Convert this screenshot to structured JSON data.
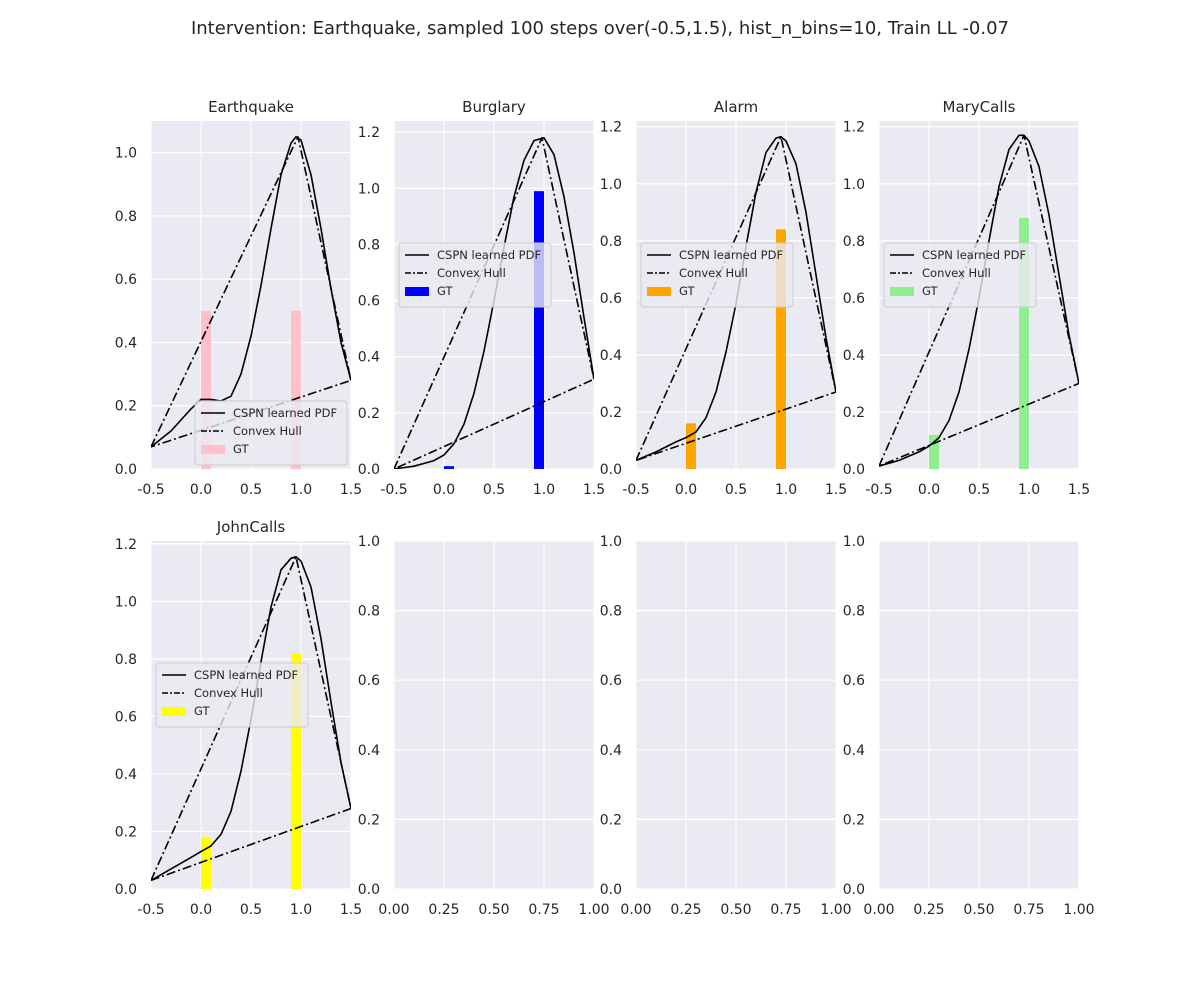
{
  "figure": {
    "suptitle": "Intervention: Earthquake, sampled 100 steps over(-0.5,1.5), hist_n_bins=10, Train LL -0.07"
  },
  "colors": {
    "axes_bg": "#eaeaf2",
    "grid": "#ffffff",
    "pdf_line": "#000000",
    "hull_line": "#000000"
  },
  "chart_data": [
    {
      "type": "line",
      "title": "Earthquake",
      "xlim": [
        -0.5,
        1.5
      ],
      "ylim": [
        0,
        1.1
      ],
      "xticks": [
        "-0.5",
        "0.0",
        "0.5",
        "1.0",
        "1.5"
      ],
      "yticks": [
        "0.0",
        "0.2",
        "0.4",
        "0.6",
        "0.8",
        "1.0"
      ],
      "yticks_values": [
        0,
        0.2,
        0.4,
        0.6,
        0.8,
        1.0
      ],
      "legend": [
        "CSPN learned PDF",
        "Convex Hull",
        "GT"
      ],
      "legend_loc": "lower-right",
      "gt_color": "#ffc0cb",
      "series": [
        {
          "name": "CSPN learned PDF",
          "style": "solid",
          "x": [
            -0.5,
            -0.3,
            -0.1,
            0.0,
            0.1,
            0.2,
            0.3,
            0.4,
            0.5,
            0.6,
            0.7,
            0.8,
            0.9,
            0.95,
            1.0,
            1.1,
            1.2,
            1.3,
            1.4,
            1.5
          ],
          "y": [
            0.07,
            0.12,
            0.19,
            0.22,
            0.22,
            0.215,
            0.23,
            0.3,
            0.42,
            0.58,
            0.76,
            0.93,
            1.03,
            1.05,
            1.04,
            0.93,
            0.76,
            0.57,
            0.4,
            0.28
          ]
        },
        {
          "name": "Convex Hull",
          "style": "dashdot",
          "x": [
            -0.5,
            0.97,
            1.5,
            -0.5
          ],
          "y": [
            0.07,
            1.05,
            0.28,
            0.07
          ]
        }
      ],
      "bars": {
        "name": "GT",
        "x": [
          0.05,
          0.95
        ],
        "y": [
          0.5,
          0.5
        ],
        "width": 0.1
      }
    },
    {
      "type": "line",
      "title": "Burglary",
      "xlim": [
        -0.5,
        1.5
      ],
      "ylim": [
        0,
        1.24
      ],
      "xticks": [
        "-0.5",
        "0.0",
        "0.5",
        "1.0",
        "1.5"
      ],
      "yticks": [
        "0.0",
        "0.2",
        "0.4",
        "0.6",
        "0.8",
        "1.0",
        "1.2"
      ],
      "yticks_values": [
        0,
        0.2,
        0.4,
        0.6,
        0.8,
        1.0,
        1.2
      ],
      "legend": [
        "CSPN learned PDF",
        "Convex Hull",
        "GT"
      ],
      "legend_loc": "center-left",
      "gt_color": "#0000ff",
      "series": [
        {
          "name": "CSPN learned PDF",
          "style": "solid",
          "x": [
            -0.5,
            -0.3,
            -0.1,
            0.0,
            0.1,
            0.2,
            0.3,
            0.4,
            0.5,
            0.6,
            0.7,
            0.8,
            0.9,
            1.0,
            1.1,
            1.2,
            1.3,
            1.4,
            1.5
          ],
          "y": [
            0.0,
            0.01,
            0.03,
            0.05,
            0.09,
            0.16,
            0.27,
            0.42,
            0.6,
            0.79,
            0.97,
            1.1,
            1.17,
            1.18,
            1.12,
            0.97,
            0.77,
            0.54,
            0.32
          ]
        },
        {
          "name": "Convex Hull",
          "style": "dashdot",
          "x": [
            -0.5,
            0.98,
            1.5,
            -0.5
          ],
          "y": [
            0.0,
            1.18,
            0.32,
            0.0
          ]
        }
      ],
      "bars": {
        "name": "GT",
        "x": [
          0.05,
          0.95
        ],
        "y": [
          0.01,
          0.99
        ],
        "width": 0.1
      }
    },
    {
      "type": "line",
      "title": "Alarm",
      "xlim": [
        -0.5,
        1.5
      ],
      "ylim": [
        0,
        1.22
      ],
      "xticks": [
        "-0.5",
        "0.0",
        "0.5",
        "1.0",
        "1.5"
      ],
      "yticks": [
        "0.0",
        "0.2",
        "0.4",
        "0.6",
        "0.8",
        "1.0",
        "1.2"
      ],
      "yticks_values": [
        0,
        0.2,
        0.4,
        0.6,
        0.8,
        1.0,
        1.2
      ],
      "legend": [
        "CSPN learned PDF",
        "Convex Hull",
        "GT"
      ],
      "legend_loc": "center-left",
      "gt_color": "#ffa500",
      "series": [
        {
          "name": "CSPN learned PDF",
          "style": "solid",
          "x": [
            -0.5,
            -0.3,
            -0.1,
            0.0,
            0.1,
            0.2,
            0.3,
            0.4,
            0.5,
            0.6,
            0.7,
            0.8,
            0.9,
            0.95,
            1.0,
            1.1,
            1.2,
            1.3,
            1.4,
            1.5
          ],
          "y": [
            0.03,
            0.06,
            0.095,
            0.11,
            0.13,
            0.18,
            0.27,
            0.41,
            0.58,
            0.78,
            0.97,
            1.11,
            1.16,
            1.165,
            1.15,
            1.07,
            0.9,
            0.68,
            0.46,
            0.27
          ]
        },
        {
          "name": "Convex Hull",
          "style": "dashdot",
          "x": [
            -0.5,
            0.95,
            1.5,
            -0.5
          ],
          "y": [
            0.03,
            1.165,
            0.27,
            0.03
          ]
        }
      ],
      "bars": {
        "name": "GT",
        "x": [
          0.05,
          0.95
        ],
        "y": [
          0.16,
          0.84
        ],
        "width": 0.1
      }
    },
    {
      "type": "line",
      "title": "MaryCalls",
      "xlim": [
        -0.5,
        1.5
      ],
      "ylim": [
        0,
        1.22
      ],
      "xticks": [
        "-0.5",
        "0.0",
        "0.5",
        "1.0",
        "1.5"
      ],
      "yticks": [
        "0.0",
        "0.2",
        "0.4",
        "0.6",
        "0.8",
        "1.0",
        "1.2"
      ],
      "yticks_values": [
        0,
        0.2,
        0.4,
        0.6,
        0.8,
        1.0,
        1.2
      ],
      "legend": [
        "CSPN learned PDF",
        "Convex Hull",
        "GT"
      ],
      "legend_loc": "center-left",
      "gt_color": "#90ee90",
      "series": [
        {
          "name": "CSPN learned PDF",
          "style": "solid",
          "x": [
            -0.5,
            -0.3,
            -0.1,
            0.0,
            0.1,
            0.2,
            0.3,
            0.4,
            0.5,
            0.6,
            0.7,
            0.8,
            0.9,
            0.95,
            1.0,
            1.1,
            1.2,
            1.3,
            1.4,
            1.5
          ],
          "y": [
            0.01,
            0.03,
            0.06,
            0.08,
            0.11,
            0.17,
            0.27,
            0.42,
            0.6,
            0.8,
            0.99,
            1.12,
            1.17,
            1.17,
            1.15,
            1.06,
            0.89,
            0.68,
            0.47,
            0.3
          ]
        },
        {
          "name": "Convex Hull",
          "style": "dashdot",
          "x": [
            -0.5,
            0.95,
            1.5,
            -0.5
          ],
          "y": [
            0.01,
            1.17,
            0.3,
            0.01
          ]
        }
      ],
      "bars": {
        "name": "GT",
        "x": [
          0.05,
          0.95
        ],
        "y": [
          0.12,
          0.88
        ],
        "width": 0.1
      }
    },
    {
      "type": "line",
      "title": "JohnCalls",
      "xlim": [
        -0.5,
        1.5
      ],
      "ylim": [
        0,
        1.21
      ],
      "xticks": [
        "-0.5",
        "0.0",
        "0.5",
        "1.0",
        "1.5"
      ],
      "yticks": [
        "0.0",
        "0.2",
        "0.4",
        "0.6",
        "0.8",
        "1.0",
        "1.2"
      ],
      "yticks_values": [
        0,
        0.2,
        0.4,
        0.6,
        0.8,
        1.0,
        1.2
      ],
      "legend": [
        "CSPN learned PDF",
        "Convex Hull",
        "GT"
      ],
      "legend_loc": "center-left",
      "gt_color": "#ffff00",
      "series": [
        {
          "name": "CSPN learned PDF",
          "style": "solid",
          "x": [
            -0.5,
            -0.3,
            -0.1,
            0.0,
            0.1,
            0.2,
            0.3,
            0.4,
            0.5,
            0.6,
            0.7,
            0.8,
            0.9,
            0.95,
            1.0,
            1.1,
            1.2,
            1.3,
            1.4,
            1.5
          ],
          "y": [
            0.03,
            0.07,
            0.11,
            0.13,
            0.15,
            0.19,
            0.27,
            0.41,
            0.59,
            0.79,
            0.98,
            1.11,
            1.15,
            1.155,
            1.14,
            1.05,
            0.87,
            0.65,
            0.44,
            0.28
          ]
        },
        {
          "name": "Convex Hull",
          "style": "dashdot",
          "x": [
            -0.5,
            0.95,
            1.5,
            -0.5
          ],
          "y": [
            0.03,
            1.155,
            0.28,
            0.03
          ]
        }
      ],
      "bars": {
        "name": "GT",
        "x": [
          0.05,
          0.95
        ],
        "y": [
          0.18,
          0.82
        ],
        "width": 0.1
      }
    },
    {
      "type": "line",
      "title": "",
      "xlim": [
        0,
        1
      ],
      "ylim": [
        0,
        1
      ],
      "xticks": [
        "0.00",
        "0.25",
        "0.50",
        "0.75",
        "1.00"
      ],
      "yticks": [
        "0.0",
        "0.2",
        "0.4",
        "0.6",
        "0.8",
        "1.0"
      ],
      "yticks_values": [
        0,
        0.2,
        0.4,
        0.6,
        0.8,
        1.0
      ],
      "series": []
    },
    {
      "type": "line",
      "title": "",
      "xlim": [
        0,
        1
      ],
      "ylim": [
        0,
        1
      ],
      "xticks": [
        "0.00",
        "0.25",
        "0.50",
        "0.75",
        "1.00"
      ],
      "yticks": [
        "0.0",
        "0.2",
        "0.4",
        "0.6",
        "0.8",
        "1.0"
      ],
      "yticks_values": [
        0,
        0.2,
        0.4,
        0.6,
        0.8,
        1.0
      ],
      "series": []
    },
    {
      "type": "line",
      "title": "",
      "xlim": [
        0,
        1
      ],
      "ylim": [
        0,
        1
      ],
      "xticks": [
        "0.00",
        "0.25",
        "0.50",
        "0.75",
        "1.00"
      ],
      "yticks": [
        "0.0",
        "0.2",
        "0.4",
        "0.6",
        "0.8",
        "1.0"
      ],
      "yticks_values": [
        0,
        0.2,
        0.4,
        0.6,
        0.8,
        1.0
      ],
      "series": []
    }
  ]
}
